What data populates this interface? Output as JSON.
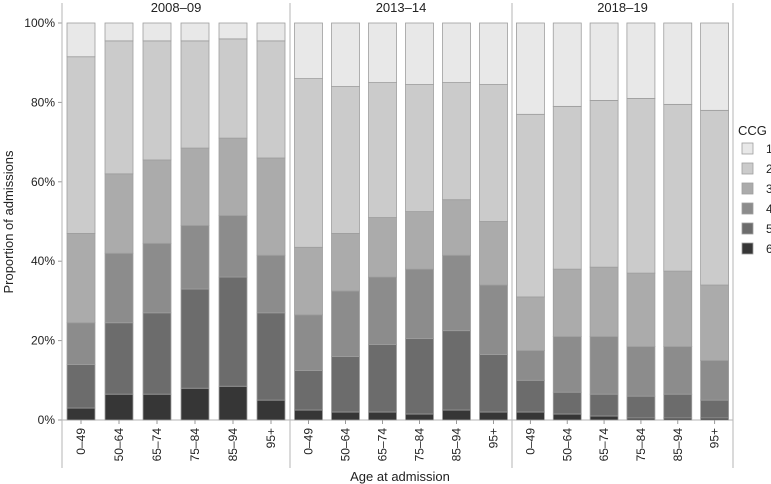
{
  "chart_data": {
    "type": "bar",
    "stacked": true,
    "normalized": true,
    "xlabel": "Age at admission",
    "ylabel": "Proportion of admissions",
    "ylim": [
      0,
      100
    ],
    "y_ticks": [
      "0%",
      "20%",
      "40%",
      "60%",
      "80%",
      "100%"
    ],
    "grid": false,
    "legend": {
      "title": "CCG",
      "placement": "right",
      "entries": [
        "1",
        "2",
        "3",
        "4",
        "5",
        "6"
      ]
    },
    "categories": [
      "0–49",
      "50–64",
      "65–74",
      "75–84",
      "85–94",
      "95+"
    ],
    "colors": {
      "1": "#e8e8e8",
      "2": "#cbcbcb",
      "3": "#ababab",
      "4": "#8c8c8c",
      "5": "#6c6c6c",
      "6": "#363636"
    },
    "panels": [
      {
        "title": "2008–09",
        "series": [
          {
            "name": "6",
            "values": [
              3,
              6.5,
              6.5,
              8,
              8.5,
              5
            ]
          },
          {
            "name": "5",
            "values": [
              11,
              18,
              20.5,
              25,
              27.5,
              22
            ]
          },
          {
            "name": "4",
            "values": [
              10.5,
              17.5,
              17.5,
              16,
              15.5,
              14.5
            ]
          },
          {
            "name": "3",
            "values": [
              22.5,
              20,
              21,
              19.5,
              19.5,
              24.5
            ]
          },
          {
            "name": "2",
            "values": [
              44.5,
              33.5,
              30,
              27,
              25,
              29.5
            ]
          },
          {
            "name": "1",
            "values": [
              8.5,
              4.5,
              4.5,
              4.5,
              4,
              4.5
            ]
          }
        ]
      },
      {
        "title": "2013–14",
        "series": [
          {
            "name": "6",
            "values": [
              2.5,
              2,
              2,
              1.5,
              2.5,
              2
            ]
          },
          {
            "name": "5",
            "values": [
              10,
              14,
              17,
              19,
              20,
              14.5
            ]
          },
          {
            "name": "4",
            "values": [
              14,
              16.5,
              17,
              17.5,
              19,
              17.5
            ]
          },
          {
            "name": "3",
            "values": [
              17,
              14.5,
              15,
              14.5,
              14,
              16
            ]
          },
          {
            "name": "2",
            "values": [
              42.5,
              37,
              34,
              32,
              29.5,
              34.5
            ]
          },
          {
            "name": "1",
            "values": [
              14,
              16,
              15,
              15.5,
              15,
              15.5
            ]
          }
        ]
      },
      {
        "title": "2018–19",
        "series": [
          {
            "name": "6",
            "values": [
              2,
              1.5,
              1,
              0.5,
              0.5,
              0.5
            ]
          },
          {
            "name": "5",
            "values": [
              8,
              5.5,
              5.5,
              5.5,
              6,
              4.5
            ]
          },
          {
            "name": "4",
            "values": [
              7.5,
              14,
              14.5,
              12.5,
              12,
              10
            ]
          },
          {
            "name": "3",
            "values": [
              13.5,
              17,
              17.5,
              18.5,
              19,
              19
            ]
          },
          {
            "name": "2",
            "values": [
              46,
              41,
              42,
              44,
              42,
              44
            ]
          },
          {
            "name": "1",
            "values": [
              23,
              21,
              19.5,
              19,
              20.5,
              22
            ]
          }
        ]
      }
    ]
  }
}
